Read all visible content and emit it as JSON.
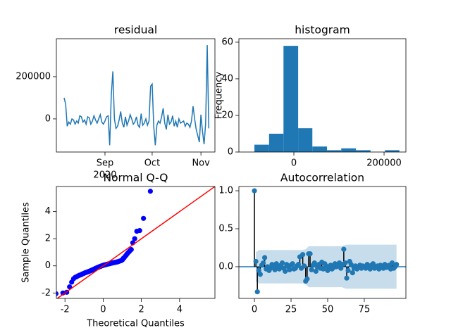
{
  "chart_data": [
    {
      "type": "line",
      "title": "residual",
      "color": "#1f77b4",
      "values": [
        100000,
        70000,
        -35000,
        -15000,
        -25000,
        0,
        -5000,
        -25000,
        -10000,
        -20000,
        15000,
        10000,
        -15000,
        -5000,
        -25000,
        10000,
        5000,
        -25000,
        -10000,
        15000,
        -5000,
        -20000,
        0,
        20000,
        -15000,
        -25000,
        -10000,
        10000,
        15000,
        -125000,
        110000,
        225000,
        0,
        -45000,
        -35000,
        -5000,
        35000,
        -20000,
        -40000,
        10000,
        -30000,
        -10000,
        20000,
        0,
        -25000,
        -15000,
        10000,
        -30000,
        -40000,
        25000,
        -30000,
        -20000,
        0,
        -30000,
        -10000,
        155000,
        165000,
        -35000,
        -125000,
        -30000,
        -10000,
        -20000,
        10000,
        50000,
        -20000,
        -50000,
        20000,
        -25000,
        -15000,
        15000,
        -35000,
        -10000,
        -40000,
        0,
        -20000,
        -15000,
        -10000,
        -35000,
        -20000,
        -25000,
        -40000,
        -10000,
        60000,
        0,
        -50000,
        -80000,
        -110000,
        20000,
        -60000,
        -120000,
        -20000,
        350000,
        -45000
      ],
      "xlim": [
        -4.9,
        95.9
      ],
      "xticks": [
        {
          "value": 26,
          "label": "Sep"
        },
        {
          "value": 56,
          "label": "Oct"
        },
        {
          "value": 87,
          "label": "Nov"
        }
      ],
      "x_offset_label": "2020",
      "ylim": [
        -157000,
        380000
      ],
      "yticks": [
        0,
        200000
      ]
    },
    {
      "type": "histogram",
      "title": "histogram",
      "ylabel": "Frequency",
      "color": "#1f77b4",
      "bins": [
        -87500,
        -55000,
        -23000,
        9500,
        41000,
        73500,
        105000,
        137500,
        170000,
        202000,
        234000
      ],
      "values": [
        4,
        10,
        58,
        13,
        3,
        1,
        2,
        1,
        0,
        1
      ],
      "xlim": [
        -121900,
        248400
      ],
      "xticks": [
        0,
        200000
      ],
      "ylim": [
        0,
        61.9
      ],
      "yticks": [
        0,
        20,
        40,
        60
      ]
    },
    {
      "type": "scatter",
      "title": "Normal Q-Q",
      "xlabel": "Theoretical Quantiles",
      "ylabel": "Sample Quantiles",
      "color": "#0000ff",
      "reference_line_color": "#ff0000",
      "x": [
        -2.47,
        -2.11,
        -1.91,
        -1.76,
        -1.65,
        -1.55,
        -1.47,
        -1.39,
        -1.33,
        -1.26,
        -1.21,
        -1.15,
        -1.1,
        -1.05,
        -1.01,
        -0.96,
        -0.92,
        -0.88,
        -0.84,
        -0.8,
        -0.77,
        -0.73,
        -0.7,
        -0.66,
        -0.63,
        -0.6,
        -0.57,
        -0.54,
        -0.5,
        -0.47,
        -0.44,
        -0.41,
        -0.39,
        -0.36,
        -0.33,
        -0.3,
        -0.27,
        -0.24,
        -0.22,
        -0.19,
        -0.16,
        -0.13,
        -0.11,
        -0.08,
        -0.05,
        -0.03,
        0,
        0.03,
        0.05,
        0.08,
        0.11,
        0.13,
        0.16,
        0.19,
        0.22,
        0.24,
        0.27,
        0.3,
        0.33,
        0.36,
        0.39,
        0.41,
        0.44,
        0.47,
        0.5,
        0.54,
        0.57,
        0.6,
        0.63,
        0.66,
        0.7,
        0.73,
        0.77,
        0.8,
        0.84,
        0.88,
        0.92,
        0.96,
        1.01,
        1.05,
        1.1,
        1.15,
        1.21,
        1.26,
        1.33,
        1.39,
        1.47,
        1.55,
        1.65,
        1.76,
        1.91,
        2.11,
        2.47
      ],
      "values": [
        -2.05,
        -2.0,
        -1.95,
        -1.55,
        -1.2,
        -0.95,
        -0.85,
        -0.8,
        -0.75,
        -0.7,
        -0.68,
        -0.65,
        -0.6,
        -0.58,
        -0.55,
        -0.52,
        -0.5,
        -0.48,
        -0.46,
        -0.44,
        -0.42,
        -0.4,
        -0.38,
        -0.36,
        -0.34,
        -0.32,
        -0.3,
        -0.28,
        -0.26,
        -0.24,
        -0.22,
        -0.2,
        -0.18,
        -0.16,
        -0.15,
        -0.13,
        -0.11,
        -0.1,
        -0.08,
        -0.06,
        -0.05,
        -0.03,
        -0.02,
        0,
        0.01,
        0.02,
        0.04,
        0.05,
        0.06,
        0.07,
        0.08,
        0.09,
        0.1,
        0.11,
        0.12,
        0.13,
        0.14,
        0.15,
        0.16,
        0.17,
        0.18,
        0.19,
        0.2,
        0.21,
        0.22,
        0.23,
        0.24,
        0.25,
        0.26,
        0.27,
        0.28,
        0.29,
        0.3,
        0.32,
        0.34,
        0.36,
        0.38,
        0.4,
        0.45,
        0.55,
        0.6,
        0.7,
        0.8,
        0.9,
        1.0,
        1.1,
        1.2,
        1.7,
        2.0,
        2.55,
        2.6,
        3.5,
        5.5
      ],
      "xlim": [
        -2.45,
        5.85
      ],
      "xticks": [
        -2,
        0,
        2,
        4
      ],
      "ylim": [
        -2.4,
        5.85
      ],
      "yticks": [
        -2,
        0,
        2,
        4
      ]
    },
    {
      "type": "stem",
      "title": "Autocorrelation",
      "color": "#1f77b4",
      "stem_color": "#000000",
      "band_color": "#1f77b4",
      "values": [
        1.0,
        0.07,
        -0.33,
        -0.05,
        -0.1,
        0.02,
        0.05,
        0.12,
        -0.03,
        0.0,
        -0.05,
        -0.02,
        0.03,
        0.01,
        -0.04,
        0.04,
        0.0,
        -0.03,
        0.02,
        0.05,
        -0.02,
        -0.06,
        0.03,
        0.0,
        -0.04,
        0.02,
        0.04,
        -0.03,
        -0.02,
        0.01,
        0.03,
        0.13,
        -0.02,
        0.16,
        0.01,
        -0.19,
        -0.16,
        0.17,
        0.17,
        -0.04,
        0.02,
        0.05,
        -0.06,
        0.0,
        0.03,
        -0.02,
        0.06,
        -0.03,
        0.04,
        0.01,
        -0.05,
        0.0,
        0.02,
        -0.03,
        -0.01,
        0.04,
        0.0,
        0.02,
        0.05,
        -0.02,
        0.03,
        0.23,
        0.05,
        -0.15,
        -0.05,
        0.07,
        0.03,
        -0.08,
        -0.02,
        0.01,
        -0.03,
        0.0,
        0.02,
        -0.02,
        0.01,
        0.0,
        -0.02,
        0.03,
        0.0,
        -0.03,
        0.02,
        0.04,
        -0.02,
        0.0,
        0.01,
        -0.03,
        0.02,
        0.0,
        -0.02,
        0.03,
        -0.01,
        0.0,
        0.02,
        -0.03,
        0.05,
        -0.02,
        0.0,
        0.03
      ],
      "band_lags": [
        1,
        2,
        3,
        8,
        33,
        35,
        36,
        37,
        60,
        61,
        63,
        97
      ],
      "band_halfwidth": [
        0.2,
        0.2,
        0.22,
        0.22,
        0.22,
        0.23,
        0.25,
        0.27,
        0.27,
        0.28,
        0.29,
        0.29
      ],
      "xlim": [
        -10.6,
        103.4
      ],
      "xticks": [
        0,
        25,
        50,
        75
      ],
      "ylim": [
        -0.417,
        1.056
      ],
      "yticks": [
        {
          "value": 0,
          "label": "0.0"
        },
        {
          "value": 0.5,
          "label": "0.5"
        },
        {
          "value": 1,
          "label": "1.0"
        }
      ]
    }
  ]
}
